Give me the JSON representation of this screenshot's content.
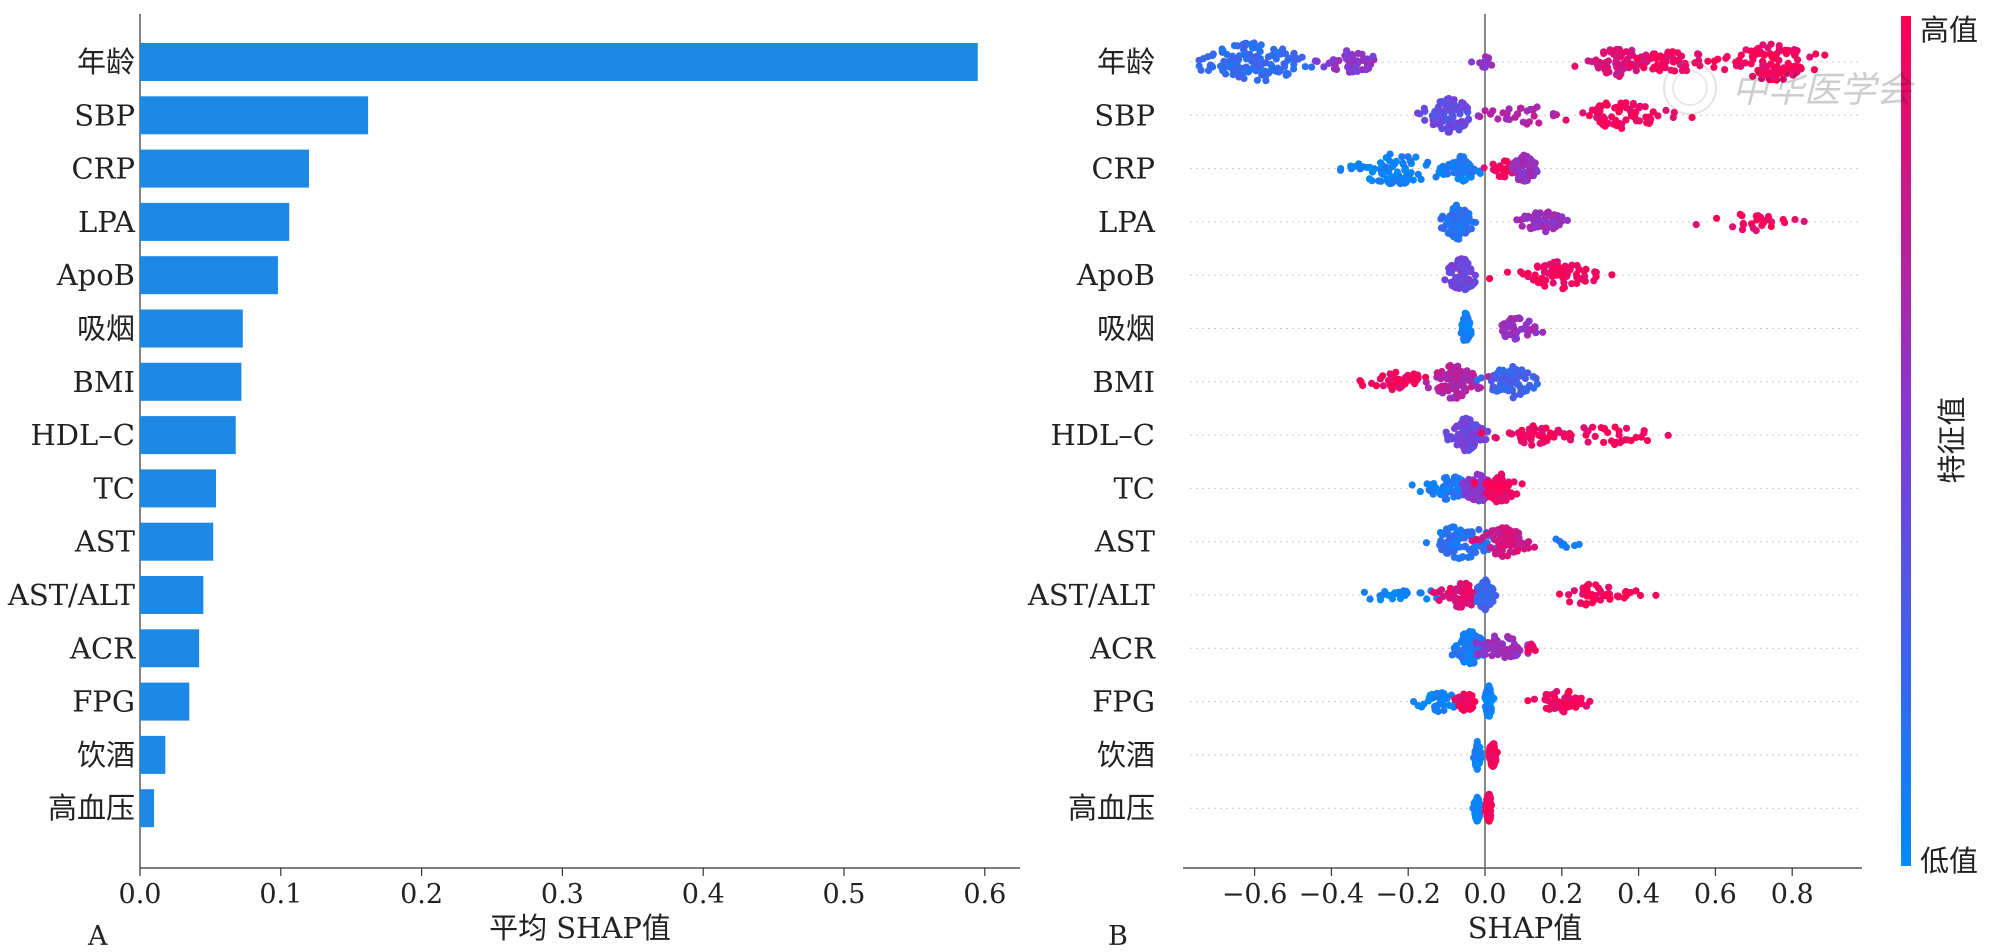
{
  "chart_data": [
    {
      "type": "bar",
      "panel_label": "A",
      "orientation": "horizontal",
      "categories": [
        "年龄",
        "SBP",
        "CRP",
        "LPA",
        "ApoB",
        "吸烟",
        "BMI",
        "HDL–C",
        "TC",
        "AST",
        "AST/ALT",
        "ACR",
        "FPG",
        "饮酒",
        "高血压"
      ],
      "values": [
        0.595,
        0.162,
        0.12,
        0.106,
        0.098,
        0.073,
        0.072,
        0.068,
        0.054,
        0.052,
        0.045,
        0.042,
        0.035,
        0.018,
        0.01
      ],
      "xlabel": "平均 SHAP值",
      "xlim": [
        0,
        0.625
      ],
      "xticks": [
        "0.0",
        "0.1",
        "0.2",
        "0.3",
        "0.4",
        "0.5",
        "0.6"
      ],
      "bar_color": "#1e88e5"
    },
    {
      "type": "scatter",
      "subtype": "beeswarm",
      "panel_label": "B",
      "categories": [
        "年龄",
        "SBP",
        "CRP",
        "LPA",
        "ApoB",
        "吸烟",
        "BMI",
        "HDL–C",
        "TC",
        "AST",
        "AST/ALT",
        "ACR",
        "FPG",
        "饮酒",
        "高血压"
      ],
      "xlabel": "SHAP值",
      "xlim": [
        -0.8,
        0.97
      ],
      "xticks": [
        "−0.6",
        "−0.4",
        "−0.2",
        "0.0",
        "0.2",
        "0.4",
        "0.6",
        "0.8"
      ],
      "colorbar": {
        "high_label": "高值",
        "low_label": "低值",
        "title": "特征值",
        "low_color": "#008afb",
        "mid_color": "#7c3dd9",
        "high_color": "#ff0052"
      },
      "series": [
        {
          "clusters": [
            [
              -0.6,
              0.07,
              900,
              0.2
            ],
            [
              -0.35,
              0.04,
              150,
              0.55
            ],
            [
              0.0,
              0.01,
              10,
              0.6
            ],
            [
              0.35,
              0.04,
              300,
              0.85
            ],
            [
              0.5,
              0.06,
              120,
              0.95
            ],
            [
              0.75,
              0.06,
              600,
              0.97
            ]
          ]
        },
        {
          "clusters": [
            [
              -0.09,
              0.03,
              550,
              0.4
            ],
            [
              0.1,
              0.06,
              60,
              0.7
            ],
            [
              0.35,
              0.06,
              250,
              0.95
            ]
          ]
        },
        {
          "clusters": [
            [
              -0.23,
              0.07,
              380,
              0.05
            ],
            [
              -0.06,
              0.02,
              200,
              0.1
            ],
            [
              0.05,
              0.02,
              60,
              0.95
            ],
            [
              0.1,
              0.015,
              300,
              0.6
            ]
          ]
        },
        {
          "clusters": [
            [
              -0.07,
              0.02,
              550,
              0.15
            ],
            [
              0.15,
              0.03,
              120,
              0.6
            ],
            [
              0.7,
              0.05,
              50,
              0.95
            ]
          ]
        },
        {
          "clusters": [
            [
              -0.06,
              0.02,
              450,
              0.45
            ],
            [
              0.2,
              0.05,
              300,
              0.95
            ]
          ]
        },
        {
          "clusters": [
            [
              -0.05,
              0.005,
              400,
              0.05
            ],
            [
              0.08,
              0.03,
              120,
              0.6
            ]
          ]
        },
        {
          "clusters": [
            [
              -0.22,
              0.04,
              80,
              0.95
            ],
            [
              -0.08,
              0.03,
              500,
              0.7
            ],
            [
              0.07,
              0.03,
              450,
              0.25
            ]
          ]
        },
        {
          "clusters": [
            [
              -0.05,
              0.02,
              500,
              0.45
            ],
            [
              0.12,
              0.05,
              100,
              0.95
            ],
            [
              0.32,
              0.07,
              80,
              0.95
            ]
          ]
        },
        {
          "clusters": [
            [
              -0.09,
              0.03,
              200,
              0.1
            ],
            [
              -0.02,
              0.02,
              300,
              0.55
            ],
            [
              0.04,
              0.02,
              350,
              0.95
            ]
          ]
        },
        {
          "clusters": [
            [
              -0.06,
              0.04,
              500,
              0.15
            ],
            [
              0.05,
              0.03,
              350,
              0.8
            ],
            [
              0.22,
              0.02,
              4,
              0.05
            ]
          ]
        },
        {
          "clusters": [
            [
              -0.22,
              0.05,
              30,
              0.05
            ],
            [
              -0.06,
              0.03,
              200,
              0.9
            ],
            [
              0.0,
              0.01,
              400,
              0.25
            ],
            [
              0.28,
              0.05,
              120,
              0.95
            ]
          ]
        },
        {
          "clusters": [
            [
              -0.04,
              0.02,
              500,
              0.1
            ],
            [
              0.04,
              0.03,
              250,
              0.6
            ],
            [
              0.12,
              0.005,
              12,
              0.95
            ]
          ]
        },
        {
          "clusters": [
            [
              -0.12,
              0.03,
              80,
              0.05
            ],
            [
              -0.05,
              0.015,
              60,
              0.95
            ],
            [
              0.01,
              0.005,
              400,
              0.05
            ],
            [
              0.2,
              0.03,
              150,
              0.95
            ]
          ]
        },
        {
          "clusters": [
            [
              -0.02,
              0.004,
              300,
              0.05
            ],
            [
              0.02,
              0.005,
              200,
              0.97
            ]
          ]
        },
        {
          "clusters": [
            [
              -0.02,
              0.004,
              250,
              0.05
            ],
            [
              0.01,
              0.004,
              300,
              0.97
            ]
          ]
        }
      ]
    }
  ],
  "watermark": "中华医学会"
}
